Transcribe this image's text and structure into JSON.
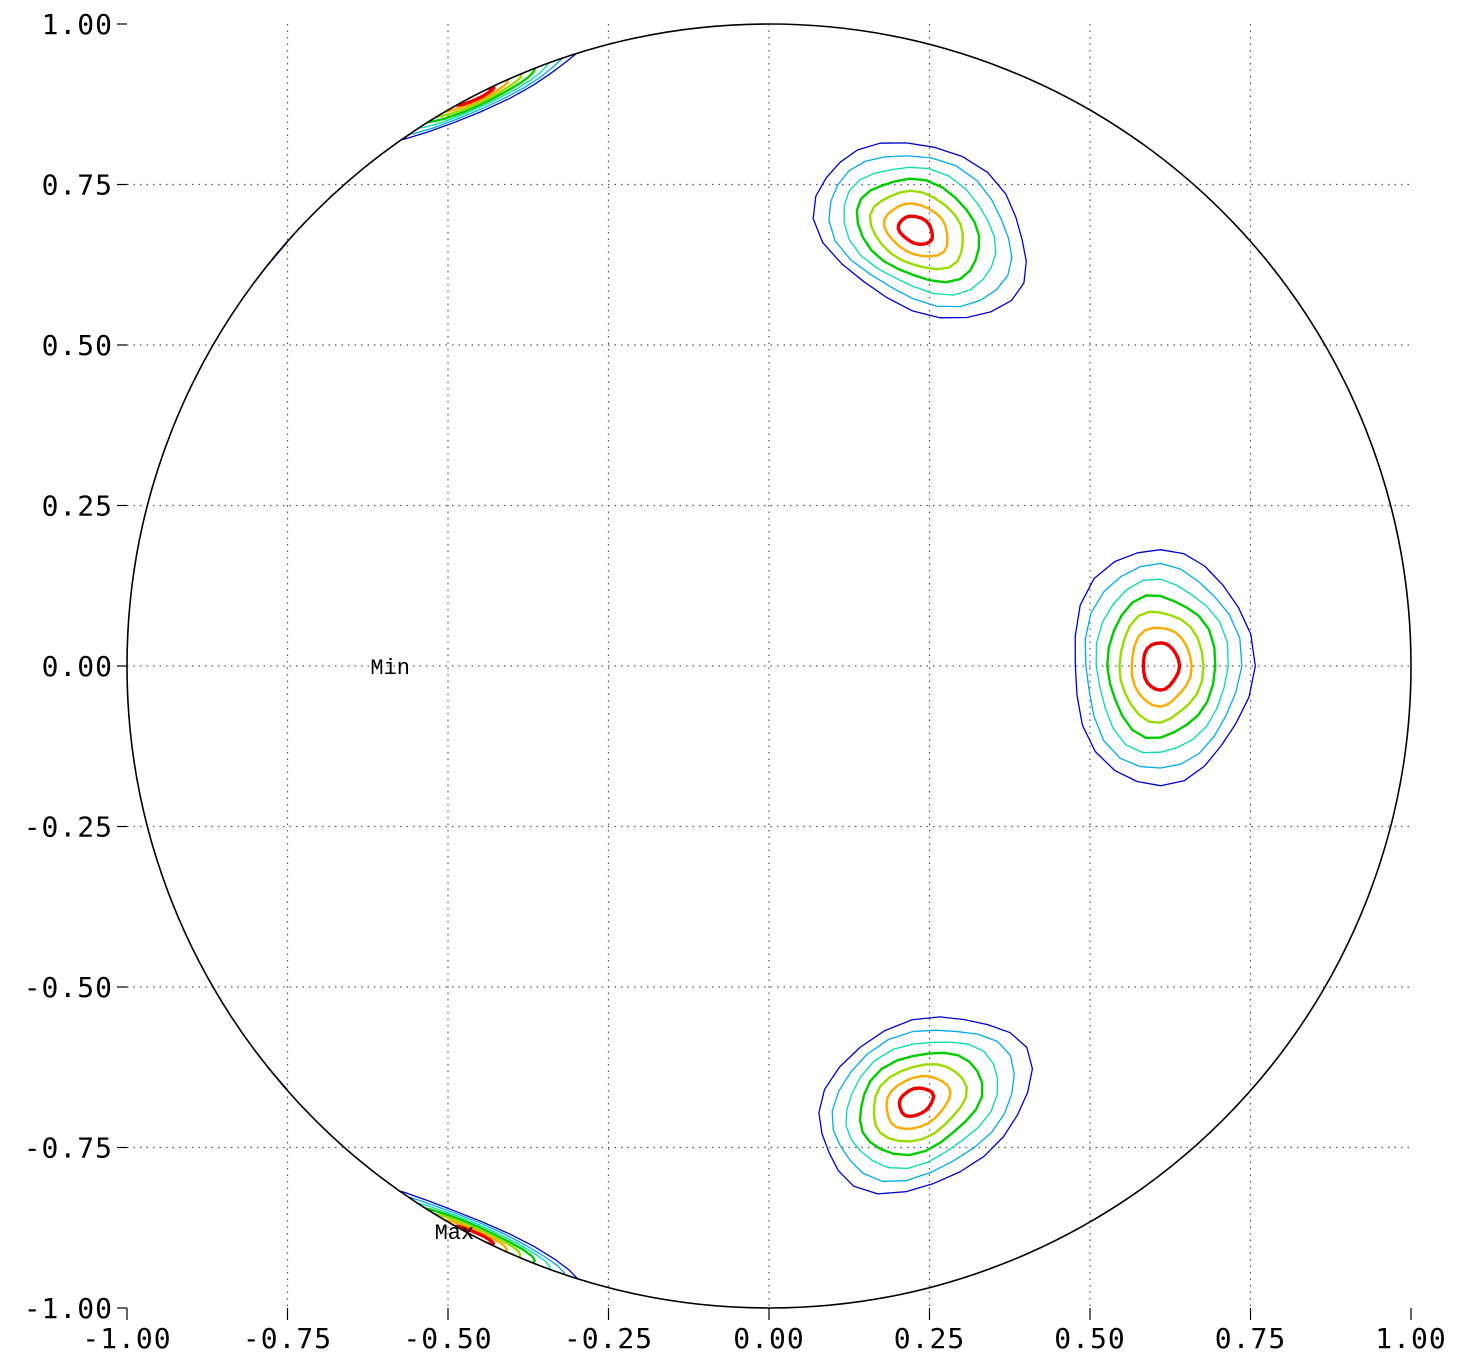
{
  "chart_data": {
    "type": "contour",
    "title": "",
    "xlabel": "",
    "ylabel": "",
    "xlim": [
      -1.0,
      1.0
    ],
    "ylim": [
      -1.0,
      1.0
    ],
    "x_ticks": [
      "-1.00",
      "-0.75",
      "-0.50",
      "-0.25",
      "0.00",
      "0.25",
      "0.50",
      "0.75",
      "1.00"
    ],
    "y_ticks": [
      "1.00",
      "0.75",
      "0.50",
      "0.25",
      "0.00",
      "-0.25",
      "-0.50",
      "-0.75",
      "-1.00"
    ],
    "grid": true,
    "grid_style": "dotted",
    "boundary": "unit circle",
    "contour_level_colors": [
      "#0000cc",
      "#00aaee",
      "#00ddaa",
      "#00cc00",
      "#99dd00",
      "#ffaa00",
      "#ee0000"
    ],
    "peaks": [
      {
        "name": "upper-right",
        "x": 0.24,
        "y": 0.68
      },
      {
        "name": "lower-right",
        "x": 0.24,
        "y": -0.68
      },
      {
        "name": "right",
        "x": 0.61,
        "y": 0.0
      },
      {
        "name": "upper-left-edge",
        "x": -0.46,
        "y": 0.89
      },
      {
        "name": "lower-left-edge",
        "x": -0.46,
        "y": -0.89
      }
    ],
    "annotations": [
      {
        "text": "Min",
        "x": -0.59,
        "y": 0.0
      },
      {
        "text": "Max",
        "x": -0.49,
        "y": -0.88
      }
    ]
  }
}
